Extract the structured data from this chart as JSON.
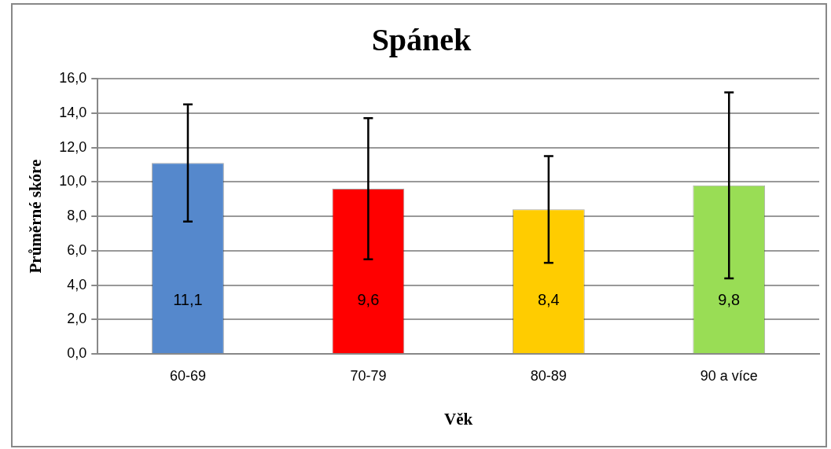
{
  "chart_data": {
    "type": "bar",
    "title": "Spánek",
    "xlabel": "Věk",
    "ylabel": "Průměrné skóre",
    "categories": [
      "60-69",
      "70-79",
      "80-89",
      "90 a více"
    ],
    "values": [
      11.1,
      9.6,
      8.4,
      9.8
    ],
    "colors": [
      "#5588cc",
      "#ff0000",
      "#ffcc00",
      "#99dd55"
    ],
    "errors": [
      3.4,
      4.1,
      3.1,
      5.4
    ],
    "value_labels": [
      "11,1",
      "9,6",
      "8,4",
      "9,8"
    ],
    "ylim": [
      0,
      16
    ],
    "yticks": [
      {
        "value": 0,
        "label": "0,0"
      },
      {
        "value": 2,
        "label": "2,0"
      },
      {
        "value": 4,
        "label": "4,0"
      },
      {
        "value": 6,
        "label": "6,0"
      },
      {
        "value": 8,
        "label": "8,0"
      },
      {
        "value": 10,
        "label": "10,0"
      },
      {
        "value": 12,
        "label": "12,0"
      },
      {
        "value": 14,
        "label": "14,0"
      },
      {
        "value": 16,
        "label": "16,0"
      }
    ],
    "grid": "y",
    "legend": false
  }
}
